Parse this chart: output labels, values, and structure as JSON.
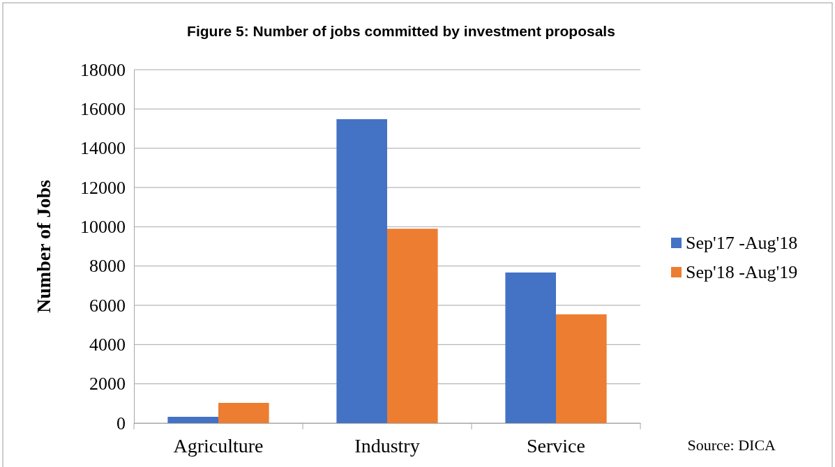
{
  "chart_data": {
    "type": "bar",
    "title": "Figure 5: Number of jobs committed by investment proposals",
    "ylabel": "Number of Jobs",
    "categories": [
      "Agriculture",
      "Industry",
      "Service"
    ],
    "series": [
      {
        "name": "Sep'17 -Aug'18",
        "color": "#4472c4",
        "values": [
          320,
          15480,
          7670
        ]
      },
      {
        "name": "Sep'18 -Aug'19",
        "color": "#ed7d31",
        "values": [
          1030,
          9900,
          5540
        ]
      }
    ],
    "ylim": [
      0,
      18000
    ],
    "yticks": [
      0,
      2000,
      4000,
      6000,
      8000,
      10000,
      12000,
      14000,
      16000,
      18000
    ],
    "grid": "y",
    "legend": "right",
    "annotations": [
      "Source: DICA"
    ]
  }
}
